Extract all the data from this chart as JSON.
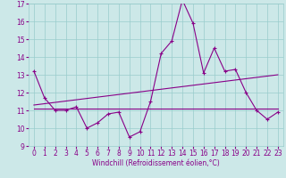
{
  "xlabel": "Windchill (Refroidissement éolien,°C)",
  "background_color": "#cce8e8",
  "grid_color": "#99cccc",
  "line_color": "#880088",
  "xlim": [
    -0.5,
    23.5
  ],
  "ylim": [
    9,
    17
  ],
  "yticks": [
    9,
    10,
    11,
    12,
    13,
    14,
    15,
    16,
    17
  ],
  "xticks": [
    0,
    1,
    2,
    3,
    4,
    5,
    6,
    7,
    8,
    9,
    10,
    11,
    12,
    13,
    14,
    15,
    16,
    17,
    18,
    19,
    20,
    21,
    22,
    23
  ],
  "line1_x": [
    0,
    1,
    2,
    3,
    4,
    5,
    6,
    7,
    8,
    9,
    10,
    11,
    12,
    13,
    14,
    15,
    16,
    17,
    18,
    19,
    20,
    21,
    22,
    23
  ],
  "line1_y": [
    13.2,
    11.7,
    11.0,
    11.0,
    11.2,
    10.0,
    10.3,
    10.8,
    10.9,
    9.5,
    9.8,
    11.5,
    14.2,
    14.9,
    17.2,
    15.9,
    13.1,
    14.5,
    13.2,
    13.3,
    12.0,
    11.0,
    10.5,
    10.9
  ],
  "line2_x": [
    0,
    23
  ],
  "line2_y": [
    11.1,
    11.1
  ],
  "line3_x": [
    0,
    23
  ],
  "line3_y": [
    11.3,
    13.0
  ],
  "tick_fontsize": 5.5,
  "xlabel_fontsize": 5.5
}
